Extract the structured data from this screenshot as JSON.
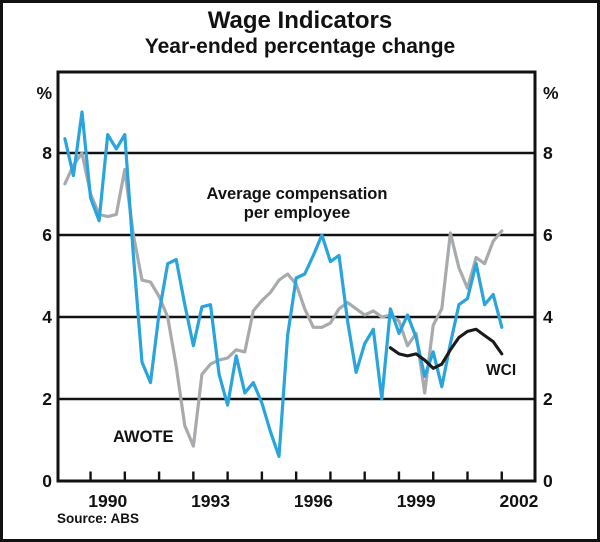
{
  "chart_data": {
    "type": "line",
    "title": "Wage Indicators",
    "subtitle": "Year-ended percentage change",
    "source": "Source: ABS",
    "unit_left": "%",
    "unit_right": "%",
    "grid": "horizontal-only",
    "legend_position": "inline-annotations",
    "ylim": [
      0,
      10
    ],
    "ytick_values": [
      0,
      2,
      4,
      6,
      8
    ],
    "gridline_values": [
      2,
      4,
      6,
      8
    ],
    "xlim": [
      1989.05,
      2002.97
    ],
    "xtick_years": [
      1990,
      1991,
      1992,
      1993,
      1994,
      1995,
      1996,
      1997,
      1998,
      1999,
      2000,
      2001,
      2002
    ],
    "xtick_label_years": [
      "1990",
      "1993",
      "1996",
      "1999",
      "2002"
    ],
    "series": [
      {
        "name": "Average compensation per employee",
        "label_line1": "Average compensation",
        "label_line2": "per employee",
        "color": "#a8abad",
        "stroke_width": 3.2,
        "x": [
          1989.25,
          1989.5,
          1989.75,
          1990.0,
          1990.25,
          1990.5,
          1990.75,
          1991.0,
          1991.25,
          1991.5,
          1991.75,
          1992.0,
          1992.25,
          1992.5,
          1992.75,
          1993.0,
          1993.25,
          1993.5,
          1993.75,
          1994.0,
          1994.25,
          1994.5,
          1994.75,
          1995.0,
          1995.25,
          1995.5,
          1995.75,
          1996.0,
          1996.25,
          1996.5,
          1996.75,
          1997.0,
          1997.25,
          1997.5,
          1997.75,
          1998.0,
          1998.25,
          1998.5,
          1998.75,
          1999.0,
          1999.25,
          1999.5,
          1999.75,
          2000.0,
          2000.25,
          2000.5,
          2000.75,
          2001.0,
          2001.25,
          2001.5,
          2001.75,
          2002.0
        ],
        "values": [
          7.25,
          7.7,
          8.0,
          7.0,
          6.5,
          6.45,
          6.5,
          7.6,
          6.0,
          4.9,
          4.85,
          4.5,
          4.0,
          2.8,
          1.35,
          0.85,
          2.6,
          2.85,
          2.95,
          3.0,
          3.2,
          3.15,
          4.15,
          4.4,
          4.6,
          4.9,
          5.05,
          4.8,
          4.2,
          3.75,
          3.75,
          3.85,
          4.2,
          4.35,
          4.2,
          4.05,
          4.15,
          4.0,
          4.05,
          3.9,
          3.3,
          3.6,
          2.15,
          3.8,
          4.2,
          6.05,
          5.2,
          4.7,
          5.45,
          5.3,
          5.85,
          6.1
        ]
      },
      {
        "name": "AWOTE",
        "label": "AWOTE",
        "color": "#2aa4dc",
        "stroke_width": 3.2,
        "x": [
          1989.25,
          1989.5,
          1989.75,
          1990.0,
          1990.25,
          1990.5,
          1990.75,
          1991.0,
          1991.25,
          1991.5,
          1991.75,
          1992.0,
          1992.25,
          1992.5,
          1992.75,
          1993.0,
          1993.25,
          1993.5,
          1993.75,
          1994.0,
          1994.25,
          1994.5,
          1994.75,
          1995.0,
          1995.25,
          1995.5,
          1995.75,
          1996.0,
          1996.25,
          1996.5,
          1996.75,
          1997.0,
          1997.25,
          1997.5,
          1997.75,
          1998.0,
          1998.25,
          1998.5,
          1998.75,
          1999.0,
          1999.25,
          1999.5,
          1999.75,
          2000.0,
          2000.25,
          2000.5,
          2000.75,
          2001.0,
          2001.25,
          2001.5,
          2001.75,
          2002.0
        ],
        "values": [
          8.35,
          7.45,
          9.0,
          6.9,
          6.35,
          8.45,
          8.1,
          8.45,
          5.5,
          2.9,
          2.4,
          4.1,
          5.3,
          5.4,
          4.3,
          3.3,
          4.25,
          4.3,
          2.6,
          1.85,
          3.05,
          2.15,
          2.4,
          1.9,
          1.2,
          0.6,
          3.55,
          4.95,
          5.05,
          5.5,
          6.0,
          5.35,
          5.5,
          3.9,
          2.65,
          3.35,
          3.7,
          2.0,
          4.2,
          3.6,
          4.05,
          3.5,
          2.55,
          3.15,
          2.3,
          3.35,
          4.3,
          4.45,
          5.3,
          4.3,
          4.55,
          3.75
        ]
      },
      {
        "name": "WCI",
        "label": "WCI",
        "color": "#1a1a1a",
        "stroke_width": 3.1,
        "x": [
          1998.75,
          1999.0,
          1999.25,
          1999.5,
          1999.75,
          2000.0,
          2000.25,
          2000.5,
          2000.75,
          2001.0,
          2001.25,
          2001.5,
          2001.75,
          2002.0
        ],
        "values": [
          3.25,
          3.1,
          3.05,
          3.1,
          2.95,
          2.75,
          2.85,
          3.2,
          3.5,
          3.65,
          3.7,
          3.55,
          3.4,
          3.1
        ]
      }
    ]
  }
}
